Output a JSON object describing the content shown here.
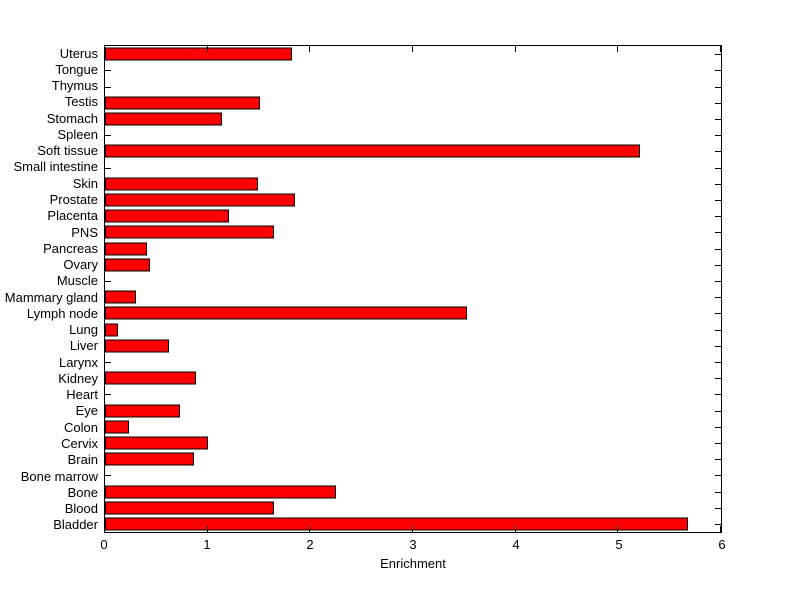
{
  "chart_data": {
    "type": "bar",
    "orientation": "horizontal",
    "title": "",
    "xlabel": "Enrichment",
    "ylabel": "",
    "xlim": [
      0,
      6
    ],
    "x_ticks": [
      0,
      1,
      2,
      3,
      4,
      5,
      6
    ],
    "grid": false,
    "legend": null,
    "bar_color": "#FF0000",
    "bar_edge_color": "#000000",
    "axis_color": "#000000",
    "background_color": "#FFFFFF",
    "categories_top_to_bottom": [
      "Uterus",
      "Tongue",
      "Thymus",
      "Testis",
      "Stomach",
      "Spleen",
      "Soft tissue",
      "Small intestine",
      "Skin",
      "Prostate",
      "Placenta",
      "PNS",
      "Pancreas",
      "Ovary",
      "Muscle",
      "Mammary gland",
      "Lymph node",
      "Lung",
      "Liver",
      "Larynx",
      "Kidney",
      "Heart",
      "Eye",
      "Colon",
      "Cervix",
      "Brain",
      "Bone marrow",
      "Bone",
      "Blood",
      "Bladder"
    ],
    "values": [
      1.82,
      0,
      0,
      1.51,
      1.14,
      0,
      5.21,
      0,
      1.49,
      1.85,
      1.21,
      1.65,
      0.41,
      0.44,
      0,
      0.3,
      3.53,
      0.13,
      0.62,
      0,
      0.89,
      0,
      0.73,
      0.23,
      1.0,
      0.87,
      0,
      2.25,
      1.65,
      5.68
    ]
  }
}
